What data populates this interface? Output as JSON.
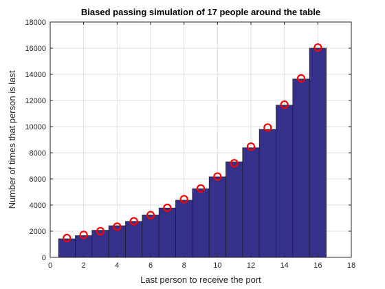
{
  "chart_data": {
    "type": "bar",
    "title": "Biased passing simulation of 17 people around the table",
    "xlabel": "Last person to receive the port",
    "ylabel": "Number of times that person is last",
    "xlim": [
      0,
      18
    ],
    "ylim": [
      0,
      18000
    ],
    "xticks": [
      0,
      2,
      4,
      6,
      8,
      10,
      12,
      14,
      16,
      18
    ],
    "yticks": [
      0,
      2000,
      4000,
      6000,
      8000,
      10000,
      12000,
      14000,
      16000,
      18000
    ],
    "grid": true,
    "categories": [
      1,
      2,
      3,
      4,
      5,
      6,
      7,
      8,
      9,
      10,
      11,
      12,
      13,
      14,
      15,
      16
    ],
    "series": [
      {
        "type": "bar",
        "color": "#35308a",
        "values": [
          1420,
          1660,
          2070,
          2420,
          2750,
          3240,
          3780,
          4370,
          5250,
          6160,
          7310,
          8380,
          9780,
          11640,
          13640,
          16000
        ]
      },
      {
        "type": "scatter",
        "marker": "circle",
        "color": "#ff0000",
        "values": [
          1480,
          1720,
          2000,
          2350,
          2760,
          3230,
          3790,
          4450,
          5270,
          6180,
          7200,
          8470,
          9930,
          11680,
          13690,
          16050
        ]
      }
    ]
  }
}
